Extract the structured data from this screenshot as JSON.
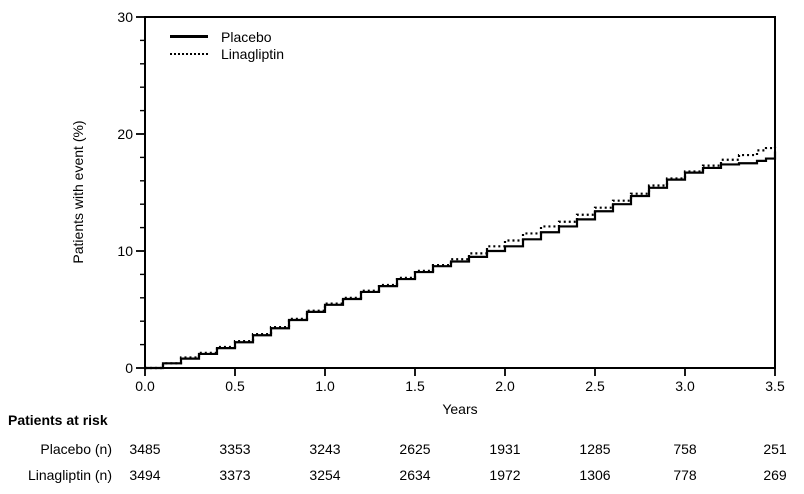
{
  "figure": {
    "background": "#ffffff",
    "line_color": "#000000"
  },
  "chart_data": {
    "type": "line",
    "subtype": "kaplan-meier-cumulative-incidence",
    "title": "",
    "xlabel": "Years",
    "ylabel": "Patients with event (%)",
    "xlim": [
      0,
      3.5
    ],
    "ylim": [
      0,
      30
    ],
    "grid": false,
    "legend_position": "top-left",
    "x_ticks": [
      0,
      0.5,
      1,
      1.5,
      2,
      2.5,
      3,
      3.5
    ],
    "x_tick_labels": [
      "0.0",
      "0.5",
      "1.0",
      "1.5",
      "2.0",
      "2.5",
      "3.0",
      "3.5"
    ],
    "y_ticks": [
      0,
      10,
      20,
      30
    ],
    "y_tick_labels": [
      "0",
      "10",
      "20",
      "30"
    ],
    "y_minor_tick_step": 2,
    "x": [
      0,
      0.1,
      0.2,
      0.3,
      0.4,
      0.5,
      0.6,
      0.7,
      0.8,
      0.9,
      1.0,
      1.1,
      1.2,
      1.3,
      1.4,
      1.5,
      1.6,
      1.7,
      1.8,
      1.9,
      2.0,
      2.1,
      2.2,
      2.3,
      2.4,
      2.5,
      2.6,
      2.7,
      2.8,
      2.9,
      3.0,
      3.1,
      3.2,
      3.3,
      3.4,
      3.45,
      3.5
    ],
    "series": [
      {
        "name": "Placebo",
        "line_style": "solid",
        "color": "#000000",
        "values": [
          0,
          0.4,
          0.8,
          1.2,
          1.7,
          2.2,
          2.8,
          3.4,
          4.1,
          4.8,
          5.4,
          5.9,
          6.5,
          7.0,
          7.6,
          8.2,
          8.7,
          9.1,
          9.5,
          10.0,
          10.4,
          11.0,
          11.6,
          12.1,
          12.7,
          13.4,
          14.0,
          14.7,
          15.4,
          16.1,
          16.7,
          17.1,
          17.4,
          17.5,
          17.7,
          17.9,
          18.5
        ]
      },
      {
        "name": "Linagliptin",
        "line_style": "dotted",
        "color": "#000000",
        "values": [
          0,
          0.4,
          0.9,
          1.3,
          1.8,
          2.3,
          2.9,
          3.5,
          4.2,
          4.9,
          5.5,
          6.0,
          6.6,
          7.1,
          7.7,
          8.3,
          8.8,
          9.3,
          9.8,
          10.4,
          10.9,
          11.5,
          12.1,
          12.5,
          13.1,
          13.7,
          14.3,
          14.9,
          15.6,
          16.2,
          16.8,
          17.3,
          17.8,
          18.2,
          18.6,
          18.8,
          18.9
        ]
      }
    ]
  },
  "legend": {
    "items": [
      {
        "label": "Placebo",
        "style": "solid"
      },
      {
        "label": "Linagliptin",
        "style": "dotted"
      }
    ]
  },
  "at_risk": {
    "header": "Patients at risk",
    "rows": [
      {
        "label": "Placebo (n)",
        "counts": [
          "3485",
          "3353",
          "3243",
          "2625",
          "1931",
          "1285",
          "758",
          "251"
        ]
      },
      {
        "label": "Linagliptin (n)",
        "counts": [
          "3494",
          "3373",
          "3254",
          "2634",
          "1972",
          "1306",
          "778",
          "269"
        ]
      }
    ]
  }
}
